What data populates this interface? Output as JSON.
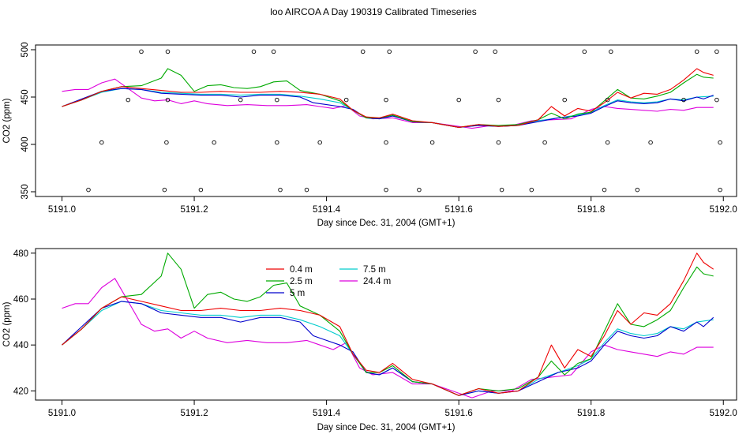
{
  "title": "loo AIRCOA A  Day 190319  Calibrated Timeseries",
  "chart_data": [
    {
      "type": "line",
      "xlabel": "Day since Dec. 31, 2004 (GMT+1)",
      "ylabel": "CO2 (ppm)",
      "xlim": [
        5190.96,
        5192.02
      ],
      "ylim": [
        345,
        505
      ],
      "xticks": [
        "5191.0",
        "5191.2",
        "5191.4",
        "5191.6",
        "5191.8",
        "5192.0"
      ],
      "yticks": [
        "350",
        "400",
        "450",
        "500"
      ],
      "grid": false,
      "legend": "none",
      "series": [
        {
          "color": "#ee0000",
          "points": [
            [
              5191.0,
              440
            ],
            [
              5191.03,
              447
            ],
            [
              5191.06,
              456
            ],
            [
              5191.09,
              461
            ],
            [
              5191.12,
              459
            ],
            [
              5191.15,
              457
            ],
            [
              5191.18,
              455
            ],
            [
              5191.21,
              455
            ],
            [
              5191.24,
              456
            ],
            [
              5191.27,
              455
            ],
            [
              5191.3,
              455
            ],
            [
              5191.33,
              456
            ],
            [
              5191.36,
              455
            ],
            [
              5191.39,
              453
            ],
            [
              5191.42,
              448
            ],
            [
              5191.44,
              436
            ],
            [
              5191.46,
              429
            ],
            [
              5191.48,
              428
            ],
            [
              5191.5,
              432
            ],
            [
              5191.53,
              425
            ],
            [
              5191.56,
              423
            ],
            [
              5191.6,
              418
            ],
            [
              5191.63,
              421
            ],
            [
              5191.66,
              419
            ],
            [
              5191.69,
              420
            ],
            [
              5191.72,
              426
            ],
            [
              5191.74,
              440
            ],
            [
              5191.76,
              430
            ],
            [
              5191.78,
              438
            ],
            [
              5191.8,
              435
            ],
            [
              5191.82,
              444
            ],
            [
              5191.84,
              455
            ],
            [
              5191.86,
              449
            ],
            [
              5191.88,
              454
            ],
            [
              5191.9,
              453
            ],
            [
              5191.92,
              458
            ],
            [
              5191.94,
              468
            ],
            [
              5191.96,
              480
            ],
            [
              5191.97,
              476
            ],
            [
              5191.985,
              473
            ]
          ]
        },
        {
          "color": "#00aa00",
          "points": [
            [
              5191.0,
              440
            ],
            [
              5191.03,
              447
            ],
            [
              5191.06,
              456
            ],
            [
              5191.09,
              461
            ],
            [
              5191.12,
              462
            ],
            [
              5191.15,
              470
            ],
            [
              5191.16,
              480
            ],
            [
              5191.18,
              473
            ],
            [
              5191.2,
              456
            ],
            [
              5191.22,
              462
            ],
            [
              5191.24,
              463
            ],
            [
              5191.26,
              460
            ],
            [
              5191.28,
              459
            ],
            [
              5191.3,
              461
            ],
            [
              5191.32,
              466
            ],
            [
              5191.34,
              467
            ],
            [
              5191.36,
              457
            ],
            [
              5191.39,
              453
            ],
            [
              5191.42,
              446
            ],
            [
              5191.44,
              436
            ],
            [
              5191.46,
              428
            ],
            [
              5191.48,
              428
            ],
            [
              5191.5,
              431
            ],
            [
              5191.53,
              424
            ],
            [
              5191.56,
              423
            ],
            [
              5191.6,
              418
            ],
            [
              5191.63,
              421
            ],
            [
              5191.66,
              420
            ],
            [
              5191.69,
              421
            ],
            [
              5191.72,
              426
            ],
            [
              5191.74,
              433
            ],
            [
              5191.76,
              427
            ],
            [
              5191.78,
              432
            ],
            [
              5191.8,
              434
            ],
            [
              5191.82,
              446
            ],
            [
              5191.84,
              458
            ],
            [
              5191.86,
              449
            ],
            [
              5191.88,
              448
            ],
            [
              5191.9,
              451
            ],
            [
              5191.92,
              455
            ],
            [
              5191.94,
              465
            ],
            [
              5191.96,
              474
            ],
            [
              5191.97,
              471
            ],
            [
              5191.985,
              470
            ]
          ]
        },
        {
          "color": "#0000cc",
          "points": [
            [
              5191.0,
              440
            ],
            [
              5191.03,
              448
            ],
            [
              5191.06,
              456
            ],
            [
              5191.09,
              459
            ],
            [
              5191.12,
              458
            ],
            [
              5191.15,
              454
            ],
            [
              5191.18,
              453
            ],
            [
              5191.21,
              452
            ],
            [
              5191.24,
              452
            ],
            [
              5191.27,
              450
            ],
            [
              5191.3,
              452
            ],
            [
              5191.33,
              452
            ],
            [
              5191.36,
              450
            ],
            [
              5191.38,
              444
            ],
            [
              5191.4,
              442
            ],
            [
              5191.42,
              440
            ],
            [
              5191.44,
              437
            ],
            [
              5191.46,
              428
            ],
            [
              5191.48,
              427
            ],
            [
              5191.5,
              430
            ],
            [
              5191.53,
              424
            ],
            [
              5191.56,
              423
            ],
            [
              5191.6,
              418
            ],
            [
              5191.63,
              420
            ],
            [
              5191.66,
              419
            ],
            [
              5191.69,
              420
            ],
            [
              5191.72,
              424
            ],
            [
              5191.75,
              428
            ],
            [
              5191.78,
              430
            ],
            [
              5191.8,
              433
            ],
            [
              5191.82,
              440
            ],
            [
              5191.84,
              446
            ],
            [
              5191.86,
              444
            ],
            [
              5191.88,
              443
            ],
            [
              5191.9,
              444
            ],
            [
              5191.92,
              448
            ],
            [
              5191.94,
              446
            ],
            [
              5191.96,
              450
            ],
            [
              5191.97,
              448
            ],
            [
              5191.985,
              452
            ]
          ]
        },
        {
          "color": "#00cccc",
          "points": [
            [
              5191.0,
              440
            ],
            [
              5191.03,
              447
            ],
            [
              5191.06,
              455
            ],
            [
              5191.09,
              459
            ],
            [
              5191.12,
              458
            ],
            [
              5191.15,
              455
            ],
            [
              5191.18,
              454
            ],
            [
              5191.21,
              453
            ],
            [
              5191.24,
              453
            ],
            [
              5191.27,
              452
            ],
            [
              5191.3,
              453
            ],
            [
              5191.33,
              453
            ],
            [
              5191.36,
              451
            ],
            [
              5191.39,
              448
            ],
            [
              5191.42,
              444
            ],
            [
              5191.44,
              436
            ],
            [
              5191.46,
              428
            ],
            [
              5191.48,
              427
            ],
            [
              5191.5,
              430
            ],
            [
              5191.53,
              424
            ],
            [
              5191.56,
              423
            ],
            [
              5191.6,
              418
            ],
            [
              5191.63,
              420
            ],
            [
              5191.66,
              419
            ],
            [
              5191.69,
              420
            ],
            [
              5191.72,
              425
            ],
            [
              5191.75,
              428
            ],
            [
              5191.78,
              431
            ],
            [
              5191.8,
              434
            ],
            [
              5191.82,
              441
            ],
            [
              5191.84,
              447
            ],
            [
              5191.86,
              445
            ],
            [
              5191.88,
              444
            ],
            [
              5191.9,
              445
            ],
            [
              5191.92,
              448
            ],
            [
              5191.94,
              447
            ],
            [
              5191.96,
              450
            ],
            [
              5191.985,
              451
            ]
          ]
        },
        {
          "color": "#dd00dd",
          "points": [
            [
              5191.0,
              456
            ],
            [
              5191.02,
              458
            ],
            [
              5191.04,
              458
            ],
            [
              5191.06,
              465
            ],
            [
              5191.08,
              469
            ],
            [
              5191.1,
              459
            ],
            [
              5191.12,
              449
            ],
            [
              5191.14,
              446
            ],
            [
              5191.16,
              447
            ],
            [
              5191.18,
              443
            ],
            [
              5191.2,
              446
            ],
            [
              5191.22,
              443
            ],
            [
              5191.25,
              441
            ],
            [
              5191.28,
              442
            ],
            [
              5191.31,
              441
            ],
            [
              5191.34,
              441
            ],
            [
              5191.37,
              442
            ],
            [
              5191.39,
              440
            ],
            [
              5191.41,
              438
            ],
            [
              5191.43,
              441
            ],
            [
              5191.45,
              430
            ],
            [
              5191.47,
              427
            ],
            [
              5191.5,
              428
            ],
            [
              5191.53,
              423
            ],
            [
              5191.56,
              423
            ],
            [
              5191.59,
              420
            ],
            [
              5191.62,
              417
            ],
            [
              5191.65,
              420
            ],
            [
              5191.68,
              420
            ],
            [
              5191.71,
              425
            ],
            [
              5191.74,
              426
            ],
            [
              5191.77,
              427
            ],
            [
              5191.8,
              437
            ],
            [
              5191.82,
              440
            ],
            [
              5191.84,
              438
            ],
            [
              5191.86,
              437
            ],
            [
              5191.88,
              436
            ],
            [
              5191.9,
              435
            ],
            [
              5191.92,
              437
            ],
            [
              5191.94,
              436
            ],
            [
              5191.96,
              439
            ],
            [
              5191.985,
              439
            ]
          ]
        }
      ],
      "markers": [
        [
          5191.04,
          352
        ],
        [
          5191.06,
          402
        ],
        [
          5191.1,
          447
        ],
        [
          5191.12,
          498
        ],
        [
          5191.155,
          352
        ],
        [
          5191.16,
          447
        ],
        [
          5191.158,
          402
        ],
        [
          5191.16,
          498
        ],
        [
          5191.21,
          352
        ],
        [
          5191.23,
          402
        ],
        [
          5191.27,
          447
        ],
        [
          5191.29,
          498
        ],
        [
          5191.32,
          498
        ],
        [
          5191.325,
          447
        ],
        [
          5191.325,
          402
        ],
        [
          5191.33,
          352
        ],
        [
          5191.37,
          352
        ],
        [
          5191.39,
          402
        ],
        [
          5191.43,
          447
        ],
        [
          5191.455,
          498
        ],
        [
          5191.49,
          352
        ],
        [
          5191.49,
          402
        ],
        [
          5191.49,
          447
        ],
        [
          5191.495,
          498
        ],
        [
          5191.54,
          352
        ],
        [
          5191.56,
          402
        ],
        [
          5191.6,
          447
        ],
        [
          5191.625,
          498
        ],
        [
          5191.655,
          498
        ],
        [
          5191.66,
          447
        ],
        [
          5191.66,
          402
        ],
        [
          5191.665,
          352
        ],
        [
          5191.71,
          352
        ],
        [
          5191.73,
          402
        ],
        [
          5191.76,
          447
        ],
        [
          5191.79,
          498
        ],
        [
          5191.82,
          352
        ],
        [
          5191.825,
          402
        ],
        [
          5191.825,
          447
        ],
        [
          5191.83,
          498
        ],
        [
          5191.87,
          352
        ],
        [
          5191.89,
          402
        ],
        [
          5191.94,
          447
        ],
        [
          5191.96,
          498
        ],
        [
          5191.99,
          498
        ],
        [
          5191.99,
          447
        ],
        [
          5191.995,
          402
        ],
        [
          5191.995,
          352
        ]
      ]
    },
    {
      "type": "line",
      "xlabel": "Day since Dec. 31, 2004 (GMT+1)",
      "ylabel": "CO2 (ppm)",
      "xlim": [
        5190.96,
        5192.02
      ],
      "ylim": [
        416,
        482
      ],
      "xticks": [
        "5191.0",
        "5191.2",
        "5191.4",
        "5191.6",
        "5191.8",
        "5192.0"
      ],
      "yticks": [
        "420",
        "440",
        "460",
        "480"
      ],
      "grid": false,
      "legend": "top-left",
      "legend_entries": [
        "0.4 m",
        "2.5 m",
        "5 m",
        "7.5 m",
        "24.4 m"
      ],
      "series_ref": "same series as first panel"
    }
  ]
}
